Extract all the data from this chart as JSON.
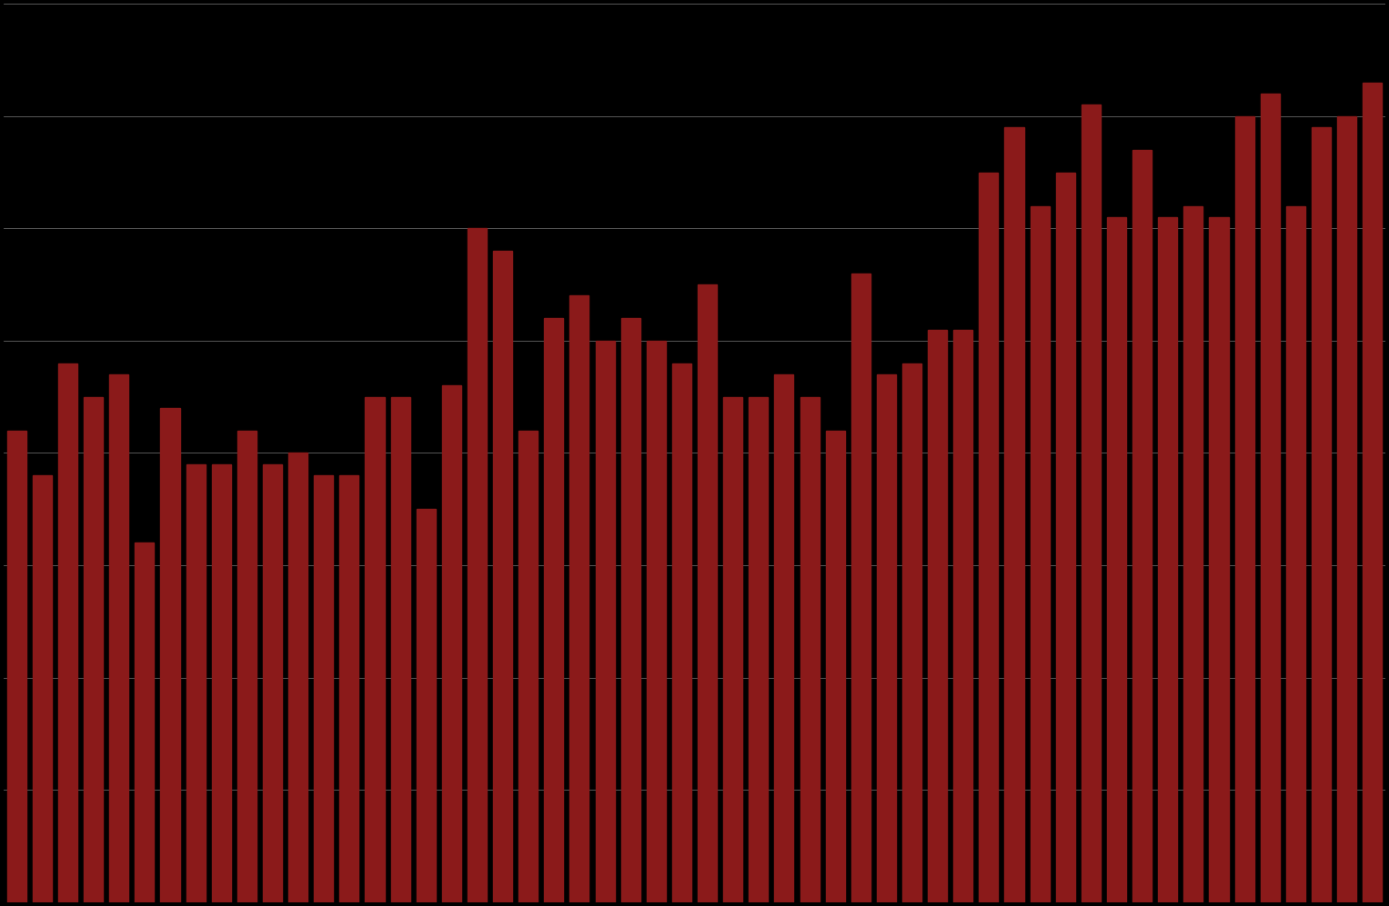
{
  "values": [
    4.2,
    3.8,
    4.8,
    4.5,
    4.7,
    3.2,
    4.4,
    3.9,
    3.9,
    4.2,
    3.9,
    4.0,
    3.8,
    3.8,
    4.5,
    4.5,
    3.5,
    4.6,
    6.0,
    5.8,
    4.2,
    5.2,
    5.4,
    5.0,
    5.2,
    5.0,
    4.8,
    5.5,
    4.5,
    4.5,
    4.7,
    4.5,
    4.2,
    5.6,
    4.7,
    4.8,
    5.1,
    5.1,
    6.5,
    6.9,
    6.2,
    6.5,
    7.1,
    6.1,
    6.7,
    6.1,
    6.2,
    6.1,
    7.0,
    7.2,
    6.2,
    6.9,
    7.0,
    7.3
  ],
  "bar_color": "#8B1A1A",
  "background_color": "#000000",
  "grid_color": "#666666",
  "ylim": [
    0,
    8
  ],
  "ytick_count": 9,
  "bar_width": 0.75
}
